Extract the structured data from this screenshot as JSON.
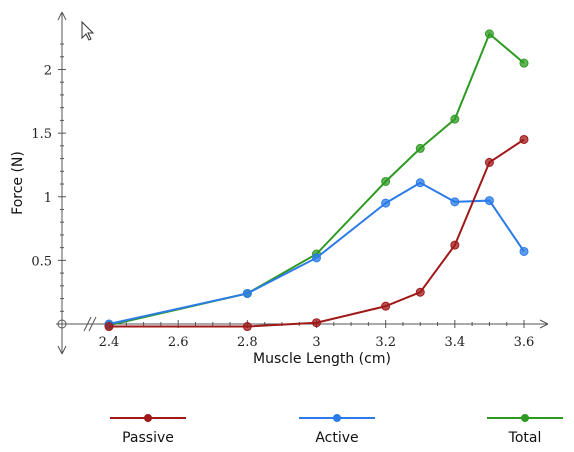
{
  "chart_data": {
    "type": "line",
    "title": "",
    "xlabel": "Muscle Length (cm)",
    "ylabel": "Force (N)",
    "xlim": [
      2.4,
      3.6
    ],
    "ylim": [
      0,
      2.3
    ],
    "x_ticks": [
      "2.4",
      "2.6",
      "2.8",
      "3",
      "3.2",
      "3.4",
      "3.6"
    ],
    "y_ticks": [
      "0.5",
      "1",
      "1.5",
      "2"
    ],
    "grid": false,
    "legend_position": "bottom",
    "series": [
      {
        "name": "Passive",
        "color": "#a01818",
        "x": [
          2.4,
          2.8,
          3.0,
          3.2,
          3.3,
          3.4,
          3.5,
          3.6
        ],
        "y": [
          -0.02,
          -0.02,
          0.01,
          0.14,
          0.25,
          0.62,
          1.27,
          1.45
        ]
      },
      {
        "name": "Active",
        "color": "#2b7be8",
        "x": [
          2.4,
          2.8,
          3.0,
          3.2,
          3.3,
          3.4,
          3.5,
          3.6
        ],
        "y": [
          0.0,
          0.24,
          0.52,
          0.95,
          1.11,
          0.96,
          0.97,
          0.57
        ]
      },
      {
        "name": "Total",
        "color": "#2e9a22",
        "x": [
          2.4,
          2.8,
          3.0,
          3.2,
          3.3,
          3.4,
          3.5,
          3.6
        ],
        "y": [
          -0.01,
          0.24,
          0.55,
          1.12,
          1.38,
          1.61,
          2.28,
          2.05
        ]
      }
    ]
  }
}
